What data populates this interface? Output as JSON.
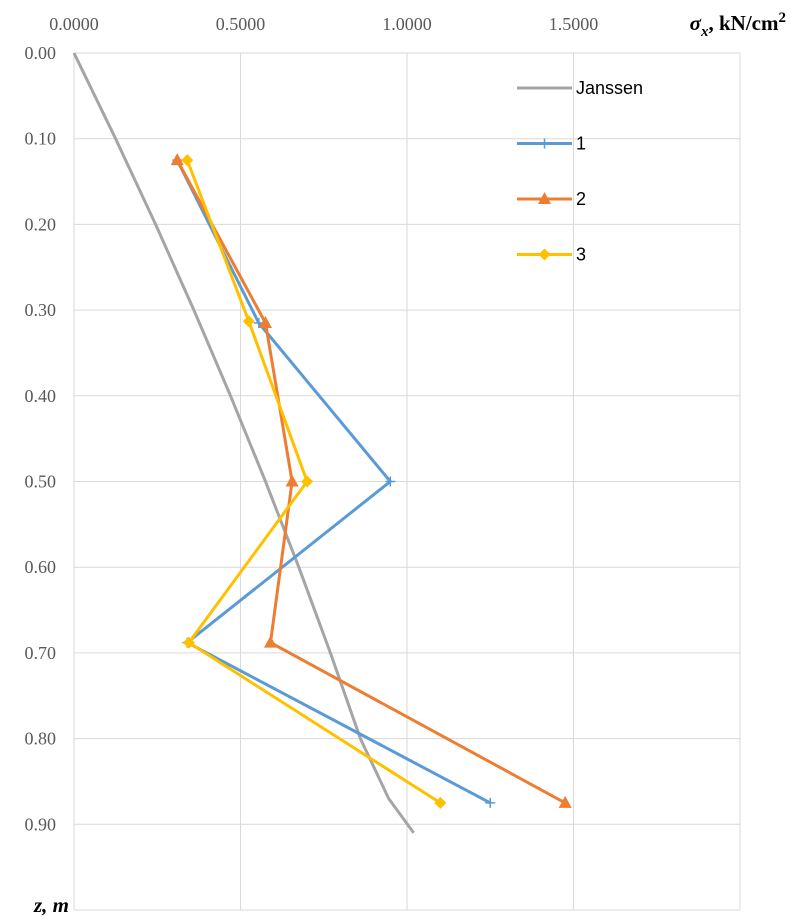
{
  "chart_data": {
    "type": "line",
    "orientation": "depth-profile (x axis on top, y axis increasing downward)",
    "x_axis": {
      "label_symbol": "σ",
      "label_subscript": "x",
      "label_unit": ", kN/cm",
      "label_superscript": "2",
      "ticks": [
        "0.0000",
        "0.5000",
        "1.0000",
        "1.5000"
      ],
      "range": [
        0,
        2.0
      ],
      "position": "top"
    },
    "y_axis": {
      "label": "z, m",
      "ticks": [
        "0.00",
        "0.10",
        "0.20",
        "0.30",
        "0.40",
        "0.50",
        "0.60",
        "0.70",
        "0.80",
        "0.90"
      ],
      "range": [
        0,
        1.0
      ],
      "inverted": true
    },
    "grid": true,
    "legend_position": "top-right",
    "series": [
      {
        "name": "Janssen",
        "color": "#a5a5a5",
        "marker": "none",
        "points": [
          [
            0.0,
            0.0
          ],
          [
            0.125,
            0.1
          ],
          [
            0.245,
            0.2
          ],
          [
            0.36,
            0.3
          ],
          [
            0.47,
            0.4
          ],
          [
            0.575,
            0.5
          ],
          [
            0.675,
            0.6
          ],
          [
            0.77,
            0.7
          ],
          [
            0.86,
            0.8
          ],
          [
            0.945,
            0.87
          ],
          [
            1.02,
            0.91
          ]
        ]
      },
      {
        "name": "1",
        "color": "#5b9bd5",
        "marker": "plus",
        "points": [
          [
            0.31,
            0.125
          ],
          [
            0.555,
            0.315
          ],
          [
            0.95,
            0.5
          ],
          [
            0.34,
            0.688
          ],
          [
            1.25,
            0.875
          ]
        ]
      },
      {
        "name": "2",
        "color": "#ed7d31",
        "marker": "triangle",
        "points": [
          [
            0.31,
            0.125
          ],
          [
            0.575,
            0.315
          ],
          [
            0.655,
            0.5
          ],
          [
            0.59,
            0.688
          ],
          [
            1.475,
            0.875
          ]
        ]
      },
      {
        "name": "3",
        "color": "#ffc000",
        "marker": "diamond",
        "points": [
          [
            0.34,
            0.125
          ],
          [
            0.525,
            0.313
          ],
          [
            0.7,
            0.5
          ],
          [
            0.345,
            0.688
          ],
          [
            1.1,
            0.875
          ]
        ]
      }
    ]
  }
}
